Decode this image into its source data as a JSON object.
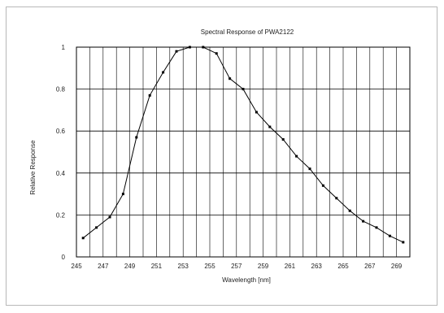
{
  "chart_data": {
    "type": "line",
    "title": "Spectral Response of PWA2122",
    "xlabel": "Wavelength [nm]",
    "ylabel": "Relative Response",
    "xlim": [
      245,
      270
    ],
    "ylim": [
      0,
      1
    ],
    "x_ticks": [
      "245",
      "247",
      "249",
      "251",
      "253",
      "255",
      "257",
      "259",
      "261",
      "263",
      "265",
      "267",
      "269"
    ],
    "y_ticks": [
      "0",
      "0.2",
      "0.4",
      "0.6",
      "0.8",
      "1"
    ],
    "grid": true,
    "legend": "none",
    "series": [
      {
        "color": "#000000",
        "x": [
          245.5,
          246.5,
          247.5,
          248.5,
          249.5,
          250.5,
          251.5,
          252.5,
          253.5,
          254.5,
          255.5,
          256.5,
          257.5,
          258.5,
          259.5,
          260.5,
          261.5,
          262.5,
          263.5,
          264.5,
          265.5,
          266.5,
          267.5,
          268.5,
          269.5
        ],
        "y": [
          0.09,
          0.14,
          0.19,
          0.3,
          0.57,
          0.77,
          0.88,
          0.98,
          1.0,
          1.0,
          0.97,
          0.85,
          0.8,
          0.69,
          0.62,
          0.56,
          0.48,
          0.42,
          0.34,
          0.28,
          0.22,
          0.17,
          0.14,
          0.1,
          0.07
        ]
      }
    ]
  }
}
